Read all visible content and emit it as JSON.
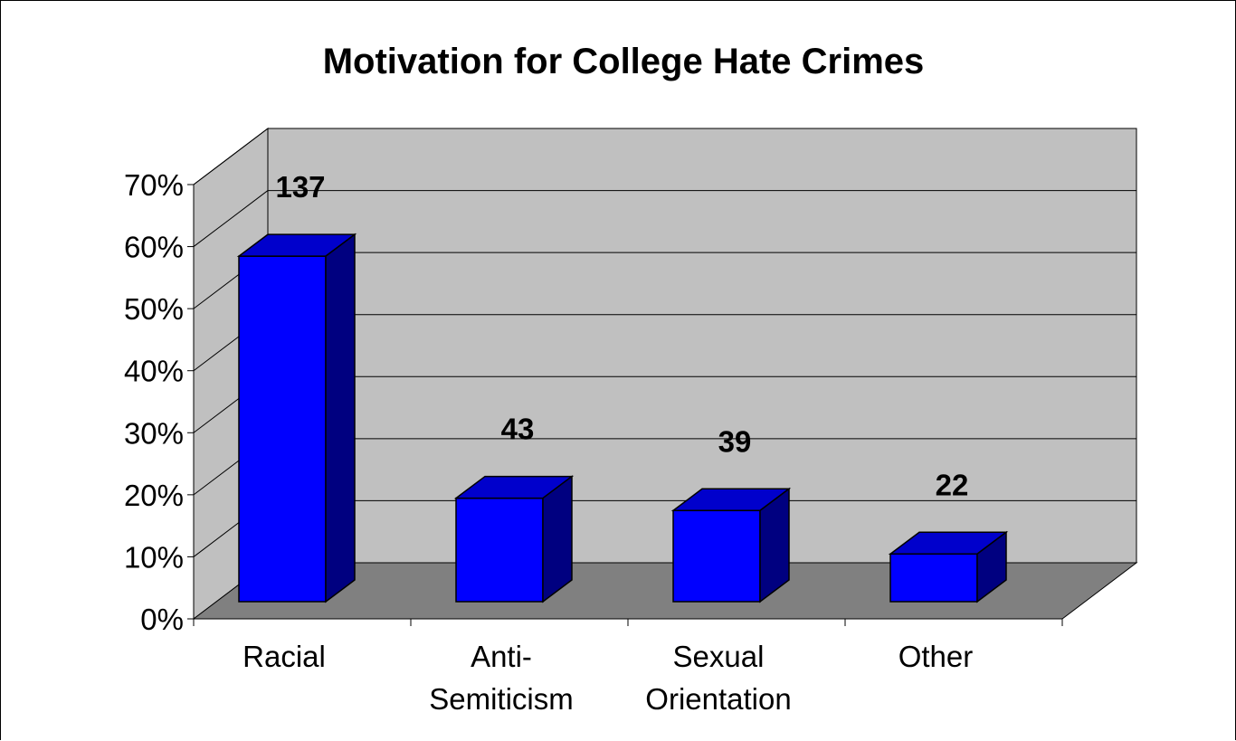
{
  "chart_data": {
    "type": "bar",
    "title": "Motivation for College Hate Crimes",
    "categories": [
      [
        "Racial"
      ],
      [
        "Anti-",
        "Semiticism"
      ],
      [
        "Sexual",
        "Orientation"
      ],
      [
        "Other"
      ]
    ],
    "values": [
      0.57,
      0.18,
      0.16,
      0.09
    ],
    "data_labels": [
      "137",
      "43",
      "39",
      "22"
    ],
    "yticks": [
      "0%",
      "10%",
      "20%",
      "30%",
      "40%",
      "50%",
      "60%",
      "70%"
    ],
    "ylim": [
      0,
      0.7
    ],
    "grid": true,
    "three_d": true,
    "colors": {
      "bar_front": "#0000FF",
      "bar_top": "#0000CC",
      "bar_side": "#000080",
      "back_wall": "#C0C0C0",
      "side_wall": "#C0C0C0",
      "floor": "#808080",
      "gridline": "#000000"
    }
  }
}
